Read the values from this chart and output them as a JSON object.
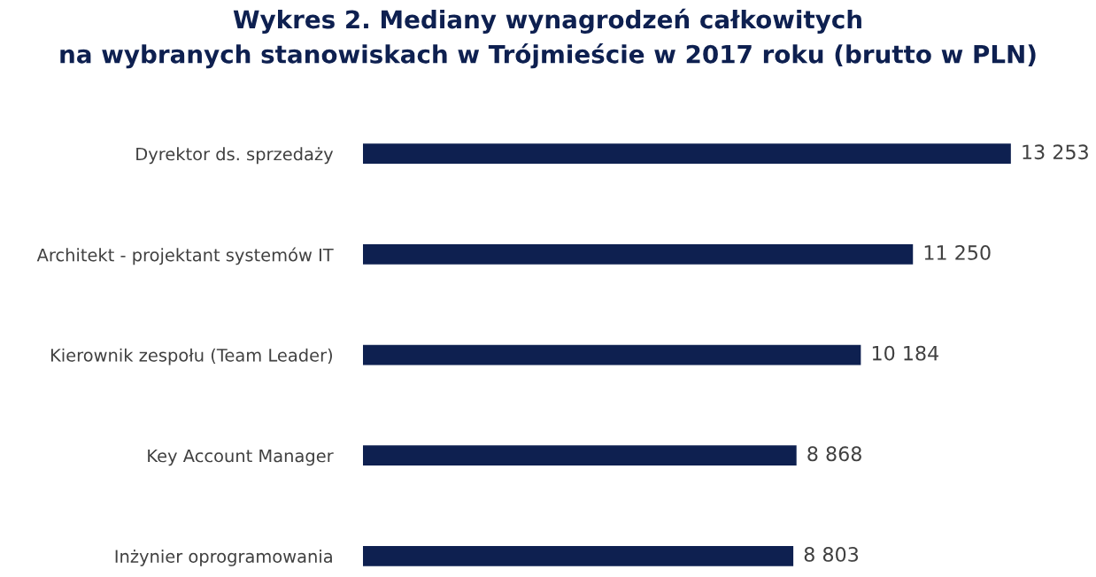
{
  "chart_data": {
    "type": "bar",
    "orientation": "horizontal",
    "title": "Wykres 2. Mediany wynagrodzeń całkowitych\nna wybranych stanowiskach w Trójmieście w 2017 roku (brutto w PLN)",
    "categories": [
      "Dyrektor ds. sprzedaży",
      "Architekt - projektant systemów IT",
      "Kierownik zespołu (Team Leader)",
      "Key Account Manager",
      "Inżynier oprogramowania"
    ],
    "values": [
      13253,
      11250,
      10184,
      8868,
      8803
    ],
    "value_labels": [
      "13 253",
      "11 250",
      "10 184",
      "8 868",
      "8 803"
    ],
    "color": "#0e2050",
    "grid": false,
    "legend": false
  }
}
